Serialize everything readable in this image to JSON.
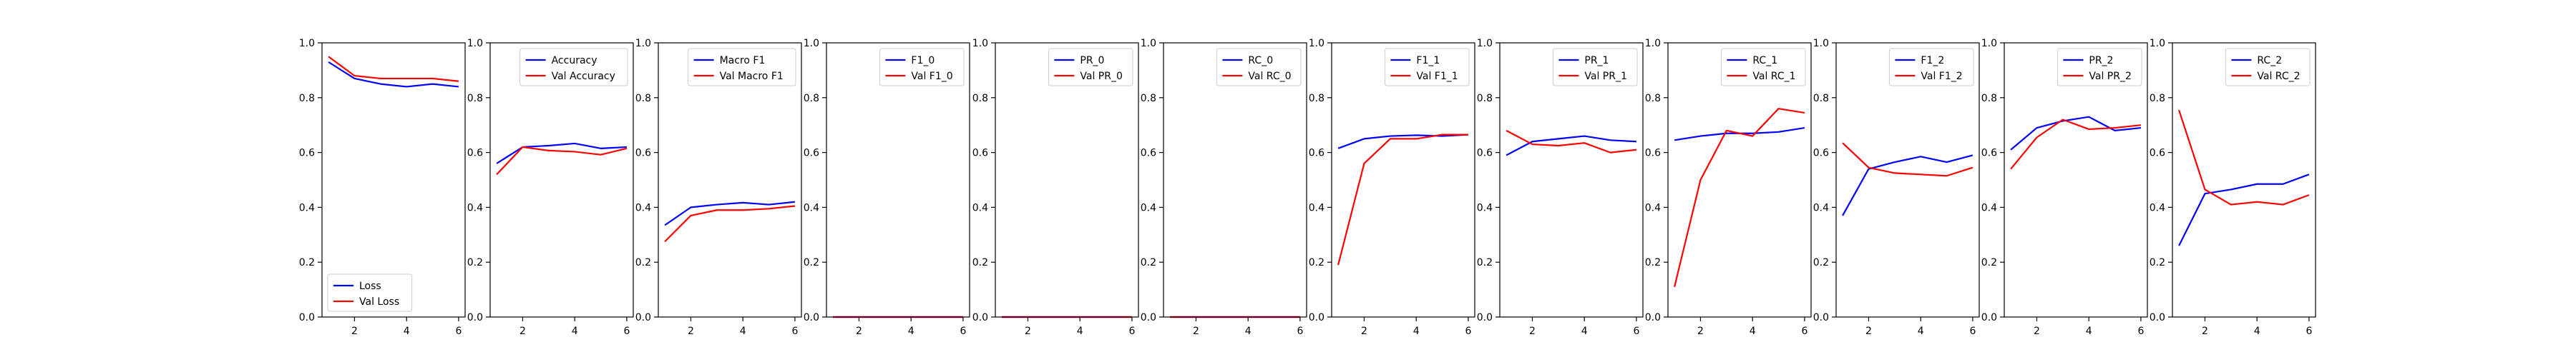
{
  "chart_data": [
    {
      "type": "line",
      "x": [
        1,
        2,
        3,
        4,
        5,
        6
      ],
      "xticks": [
        2,
        4,
        6
      ],
      "xlim": [
        0.75,
        6.25
      ],
      "ylim": [
        0,
        1.0
      ],
      "yticks": [
        0.0,
        0.2,
        0.4,
        0.6,
        0.8,
        1.0
      ],
      "ytick_labels": [
        "0.0",
        "0.2",
        "0.4",
        "0.6",
        "0.8",
        "1.0"
      ],
      "legend_position": "lower-left",
      "series": [
        {
          "name": "Loss",
          "color": "#0000ff",
          "values": [
            0.93,
            0.87,
            0.85,
            0.84,
            0.85,
            0.84
          ]
        },
        {
          "name": "Val Loss",
          "color": "#ff0000",
          "values": [
            0.95,
            0.88,
            0.87,
            0.87,
            0.87,
            0.86
          ]
        }
      ]
    },
    {
      "type": "line",
      "x": [
        1,
        2,
        3,
        4,
        5,
        6
      ],
      "xticks": [
        2,
        4,
        6
      ],
      "xlim": [
        0.75,
        6.25
      ],
      "ylim": [
        0,
        1.0
      ],
      "legend_position": "upper-right",
      "series": [
        {
          "name": "Accuracy",
          "color": "#0000ff",
          "values": [
            0.56,
            0.62,
            0.625,
            0.633,
            0.615,
            0.62
          ]
        },
        {
          "name": "Val Accuracy",
          "color": "#ff0000",
          "values": [
            0.52,
            0.62,
            0.607,
            0.603,
            0.592,
            0.615
          ]
        }
      ]
    },
    {
      "type": "line",
      "x": [
        1,
        2,
        3,
        4,
        5,
        6
      ],
      "xticks": [
        2,
        4,
        6
      ],
      "xlim": [
        0.75,
        6.25
      ],
      "ylim": [
        0,
        1.0
      ],
      "legend_position": "upper-right",
      "series": [
        {
          "name": "Macro F1",
          "color": "#0000ff",
          "values": [
            0.335,
            0.4,
            0.41,
            0.417,
            0.41,
            0.42
          ]
        },
        {
          "name": "Val Macro F1",
          "color": "#ff0000",
          "values": [
            0.275,
            0.37,
            0.39,
            0.39,
            0.395,
            0.405
          ]
        }
      ]
    },
    {
      "type": "line",
      "x": [
        1,
        2,
        3,
        4,
        5,
        6
      ],
      "xticks": [
        2,
        4,
        6
      ],
      "xlim": [
        0.75,
        6.25
      ],
      "ylim": [
        0,
        1.0
      ],
      "legend_position": "upper-right",
      "series": [
        {
          "name": "F1_0",
          "color": "#0000ff",
          "values": [
            0,
            0,
            0,
            0,
            0,
            0
          ]
        },
        {
          "name": "Val F1_0",
          "color": "#ff0000",
          "values": [
            0,
            0,
            0,
            0,
            0,
            0
          ]
        }
      ]
    },
    {
      "type": "line",
      "x": [
        1,
        2,
        3,
        4,
        5,
        6
      ],
      "xticks": [
        2,
        4,
        6
      ],
      "xlim": [
        0.75,
        6.25
      ],
      "ylim": [
        0,
        1.0
      ],
      "legend_position": "upper-right",
      "series": [
        {
          "name": "PR_0",
          "color": "#0000ff",
          "values": [
            0,
            0,
            0,
            0,
            0,
            0
          ]
        },
        {
          "name": "Val PR_0",
          "color": "#ff0000",
          "values": [
            0,
            0,
            0,
            0,
            0,
            0
          ]
        }
      ]
    },
    {
      "type": "line",
      "x": [
        1,
        2,
        3,
        4,
        5,
        6
      ],
      "xticks": [
        2,
        4,
        6
      ],
      "xlim": [
        0.75,
        6.25
      ],
      "ylim": [
        0,
        1.0
      ],
      "legend_position": "upper-right",
      "series": [
        {
          "name": "RC_0",
          "color": "#0000ff",
          "values": [
            0,
            0,
            0,
            0,
            0,
            0
          ]
        },
        {
          "name": "Val RC_0",
          "color": "#ff0000",
          "values": [
            0,
            0,
            0,
            0,
            0,
            0
          ]
        }
      ]
    },
    {
      "type": "line",
      "x": [
        1,
        2,
        3,
        4,
        5,
        6
      ],
      "xticks": [
        2,
        4,
        6
      ],
      "xlim": [
        0.75,
        6.25
      ],
      "ylim": [
        0,
        1.0
      ],
      "legend_position": "upper-right",
      "series": [
        {
          "name": "F1_1",
          "color": "#0000ff",
          "values": [
            0.615,
            0.65,
            0.66,
            0.663,
            0.66,
            0.665
          ]
        },
        {
          "name": "Val F1_1",
          "color": "#ff0000",
          "values": [
            0.19,
            0.56,
            0.65,
            0.65,
            0.665,
            0.665
          ]
        }
      ]
    },
    {
      "type": "line",
      "x": [
        1,
        2,
        3,
        4,
        5,
        6
      ],
      "xticks": [
        2,
        4,
        6
      ],
      "xlim": [
        0.75,
        6.25
      ],
      "ylim": [
        0,
        1.0
      ],
      "legend_position": "upper-right",
      "series": [
        {
          "name": "PR_1",
          "color": "#0000ff",
          "values": [
            0.59,
            0.64,
            0.65,
            0.66,
            0.645,
            0.64
          ]
        },
        {
          "name": "Val PR_1",
          "color": "#ff0000",
          "values": [
            0.68,
            0.63,
            0.625,
            0.635,
            0.6,
            0.61
          ]
        }
      ]
    },
    {
      "type": "line",
      "x": [
        1,
        2,
        3,
        4,
        5,
        6
      ],
      "xticks": [
        2,
        4,
        6
      ],
      "xlim": [
        0.75,
        6.25
      ],
      "ylim": [
        0,
        1.0
      ],
      "legend_position": "upper-right",
      "series": [
        {
          "name": "RC_1",
          "color": "#0000ff",
          "values": [
            0.645,
            0.66,
            0.67,
            0.67,
            0.675,
            0.69
          ]
        },
        {
          "name": "Val RC_1",
          "color": "#ff0000",
          "values": [
            0.11,
            0.5,
            0.68,
            0.66,
            0.76,
            0.745
          ]
        }
      ]
    },
    {
      "type": "line",
      "x": [
        1,
        2,
        3,
        4,
        5,
        6
      ],
      "xticks": [
        2,
        4,
        6
      ],
      "xlim": [
        0.75,
        6.25
      ],
      "ylim": [
        0,
        1.0
      ],
      "legend_position": "upper-right",
      "series": [
        {
          "name": "F1_2",
          "color": "#0000ff",
          "values": [
            0.37,
            0.54,
            0.565,
            0.585,
            0.565,
            0.59
          ]
        },
        {
          "name": "Val F1_2",
          "color": "#ff0000",
          "values": [
            0.635,
            0.545,
            0.525,
            0.52,
            0.515,
            0.545
          ]
        }
      ]
    },
    {
      "type": "line",
      "x": [
        1,
        2,
        3,
        4,
        5,
        6
      ],
      "xticks": [
        2,
        4,
        6
      ],
      "xlim": [
        0.75,
        6.25
      ],
      "ylim": [
        0,
        1.0
      ],
      "legend_position": "upper-right",
      "series": [
        {
          "name": "PR_2",
          "color": "#0000ff",
          "values": [
            0.61,
            0.69,
            0.715,
            0.73,
            0.68,
            0.69
          ]
        },
        {
          "name": "Val PR_2",
          "color": "#ff0000",
          "values": [
            0.54,
            0.655,
            0.72,
            0.685,
            0.69,
            0.7
          ]
        }
      ]
    },
    {
      "type": "line",
      "x": [
        1,
        2,
        3,
        4,
        5,
        6
      ],
      "xticks": [
        2,
        4,
        6
      ],
      "xlim": [
        0.75,
        6.25
      ],
      "ylim": [
        0,
        1.0
      ],
      "legend_position": "upper-right",
      "series": [
        {
          "name": "RC_2",
          "color": "#0000ff",
          "values": [
            0.26,
            0.45,
            0.465,
            0.485,
            0.485,
            0.52
          ]
        },
        {
          "name": "Val RC_2",
          "color": "#ff0000",
          "values": [
            0.755,
            0.465,
            0.41,
            0.42,
            0.41,
            0.445
          ]
        }
      ]
    }
  ]
}
